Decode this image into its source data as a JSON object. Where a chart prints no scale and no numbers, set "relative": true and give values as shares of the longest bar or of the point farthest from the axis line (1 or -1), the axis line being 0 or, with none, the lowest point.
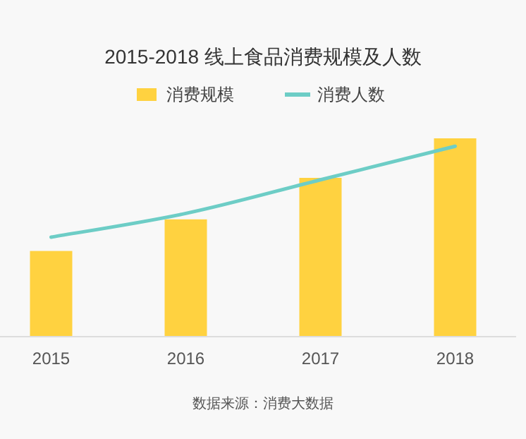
{
  "chart_data": {
    "type": "bar",
    "title": "2015-2018 线上食品消费规模及人数",
    "relative": true,
    "legend": "top",
    "grid": false,
    "categories": [
      "2015",
      "2016",
      "2017",
      "2018"
    ],
    "series": [
      {
        "name": "消费规模",
        "color": "#ffd240",
        "values": [
          0.43,
          0.59,
          0.8,
          1.0
        ]
      },
      {
        "name": "消费人数",
        "type": "line",
        "color": "#6dcdc6",
        "values": [
          0.5,
          0.62,
          0.79,
          0.96
        ]
      }
    ],
    "annotations": [
      "数据来源：消费大数据"
    ]
  }
}
